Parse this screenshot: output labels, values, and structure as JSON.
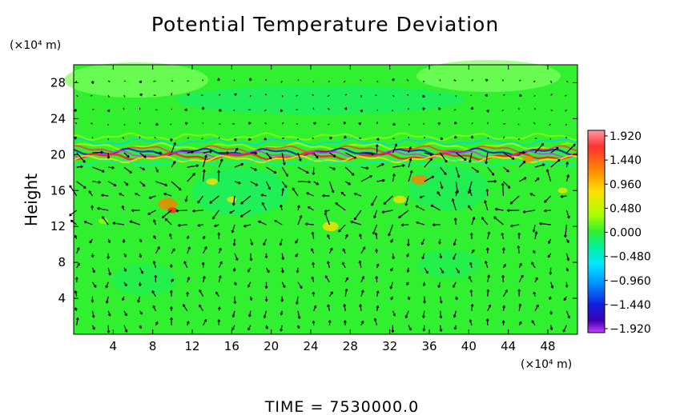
{
  "chart_data": {
    "type": "heatmap",
    "title": "Potential Temperature Deviation",
    "ylabel": "Height",
    "x_unit": "(×10⁴ m)",
    "y_unit": "(×10⁴ m)",
    "x_ticks": [
      "4",
      "8",
      "12",
      "16",
      "20",
      "24",
      "28",
      "32",
      "36",
      "40",
      "44",
      "48"
    ],
    "y_ticks": [
      "4",
      "8",
      "12",
      "16",
      "20",
      "24",
      "28"
    ],
    "xlim": [
      0,
      51
    ],
    "ylim": [
      0,
      30
    ],
    "colorbar": {
      "labels": [
        "1.920",
        "1.440",
        "0.960",
        "0.480",
        "0.000",
        "−0.480",
        "−0.960",
        "−1.440",
        "−1.920"
      ],
      "range": [
        -1.92,
        1.92
      ],
      "colors": [
        "#ff8090",
        "#ff2020",
        "#ff8000",
        "#ffe000",
        "#80ff00",
        "#10e000",
        "#00ff90",
        "#00ffff",
        "#00b0ff",
        "#2040ff",
        "#0000c0",
        "#6000c0",
        "#c030ff"
      ]
    },
    "background_value_color": "#30f030",
    "features": [
      {
        "type": "band",
        "y": 20.5,
        "note_color": "#c040c0"
      },
      {
        "type": "band",
        "y": 19.8,
        "note_color": "#ff4040"
      }
    ],
    "footer": "TIME  =  7530000.0"
  }
}
